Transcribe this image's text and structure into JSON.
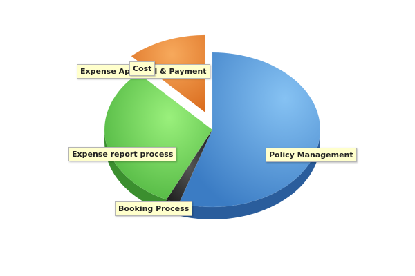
{
  "chart_data": {
    "type": "pie",
    "three_d": true,
    "legend": "none",
    "slices": [
      {
        "label": "Policy Management",
        "value": 55,
        "color": "#4a8ad0",
        "exploded": false
      },
      {
        "label": "Booking Process",
        "value": 2,
        "color": "#2a2a2a",
        "exploded": false
      },
      {
        "label": "Expense report process",
        "value": 31,
        "color": "#5ec24e",
        "exploded": false
      },
      {
        "label": "Expense Approval & Payment",
        "value": 0,
        "color": "#e0e0e0",
        "exploded": false
      },
      {
        "label": "Cost",
        "value": 12,
        "color": "#e27a28",
        "exploded": true
      }
    ],
    "labels": [
      {
        "text": "Policy Management"
      },
      {
        "text": "Booking Process"
      },
      {
        "text": "Expense report process"
      },
      {
        "text": "Expense Approval & Payment"
      },
      {
        "text": "Cost"
      }
    ]
  }
}
